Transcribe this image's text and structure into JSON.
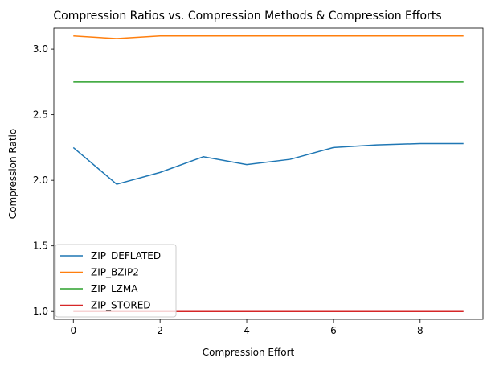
{
  "chart_data": {
    "type": "line",
    "title": "Compression Ratios vs. Compression Methods & Compression Efforts",
    "xlabel": "Compression Effort",
    "ylabel": "Compression Ratio",
    "xlim": [
      -0.45,
      9.45
    ],
    "ylim": [
      0.94,
      3.16
    ],
    "xticks": [
      0,
      2,
      4,
      6,
      8
    ],
    "yticks": [
      1.0,
      1.5,
      2.0,
      2.5,
      3.0
    ],
    "grid": false,
    "legend_position": "lower-left",
    "x": [
      0,
      1,
      2,
      3,
      4,
      5,
      6,
      7,
      8,
      9
    ],
    "series": [
      {
        "name": "ZIP_DEFLATED",
        "color": "#1f77b4",
        "values": [
          2.25,
          1.97,
          2.06,
          2.18,
          2.12,
          2.16,
          2.25,
          2.27,
          2.28,
          2.28
        ]
      },
      {
        "name": "ZIP_BZIP2",
        "color": "#ff7f0e",
        "values": [
          3.1,
          3.08,
          3.1,
          3.1,
          3.1,
          3.1,
          3.1,
          3.1,
          3.1,
          3.1
        ]
      },
      {
        "name": "ZIP_LZMA",
        "color": "#2ca02c",
        "values": [
          2.75,
          2.75,
          2.75,
          2.75,
          2.75,
          2.75,
          2.75,
          2.75,
          2.75,
          2.75
        ]
      },
      {
        "name": "ZIP_STORED",
        "color": "#d62728",
        "values": [
          1.0,
          1.0,
          1.0,
          1.0,
          1.0,
          1.0,
          1.0,
          1.0,
          1.0,
          1.0
        ]
      }
    ]
  }
}
